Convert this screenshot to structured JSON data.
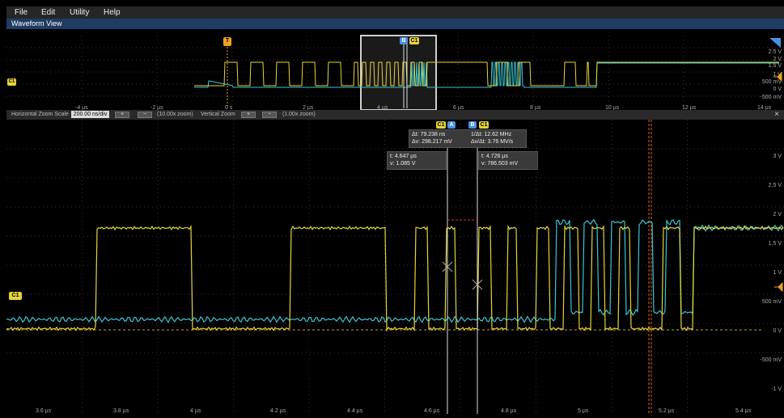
{
  "menu": {
    "file": "File",
    "edit": "Edit",
    "utility": "Utility",
    "help": "Help"
  },
  "waveform_view": {
    "title": "Waveform View"
  },
  "overview": {
    "time_labels": [
      "-4 µs",
      "-2 µs",
      "0 s",
      "2 µs",
      "4 µs",
      "6 µs",
      "8 µs",
      "10 µs",
      "12 µs",
      "14 µs"
    ],
    "volt_labels": [
      "2.5 V",
      "2 V",
      "1.5 V",
      "1 V",
      "500 mV",
      "0 V",
      "-500 mV"
    ],
    "trigger_label": "T",
    "cursor_badges": [
      "B",
      "C1"
    ],
    "channel_marker": "C1"
  },
  "zoom_bar": {
    "h_label": "Horizontal Zoom Scale",
    "h_value": "200.00 ns/div",
    "plus": "+",
    "minus": "−",
    "h_zoom": "(10.00x zoom)",
    "v_label": "Vertical Zoom",
    "v_zoom": "(1.00x zoom)",
    "close": "×"
  },
  "main": {
    "time_labels": [
      "3.6 µs",
      "3.8 µs",
      "4 µs",
      "4.2 µs",
      "4.4 µs",
      "4.6 µs",
      "4.8 µs",
      "5 µs",
      "5.2 µs",
      "5.4 µs"
    ],
    "volt_labels": [
      "3 V",
      "2.5 V",
      "2 V",
      "1.5 V",
      "1 V",
      "500 mV",
      "0 V",
      "-500 mV",
      "-1 V"
    ],
    "channel_marker": "C1",
    "cursor_a_badges": [
      "C1",
      "A"
    ],
    "cursor_b_badges": [
      "B",
      "C1"
    ],
    "delta": {
      "dt": "Δt: 79.238 ns",
      "inv_dt": "1/Δt: 12.62 MHz",
      "dv": "Δv: 298.217 mV",
      "dvdt": "Δv/Δt: 3.76 MV/s"
    },
    "cursor_a": {
      "t": "t: 4.647 µs",
      "v": "v: 1.085 V"
    },
    "cursor_b": {
      "t": "t: 4.726 µs",
      "v": "v: 786.503 mV"
    }
  },
  "colors": {
    "ch1": "#e6d43a",
    "ch2": "#39c6d6",
    "accent": "#f0a020",
    "badge_blue": "#4a90e2"
  }
}
